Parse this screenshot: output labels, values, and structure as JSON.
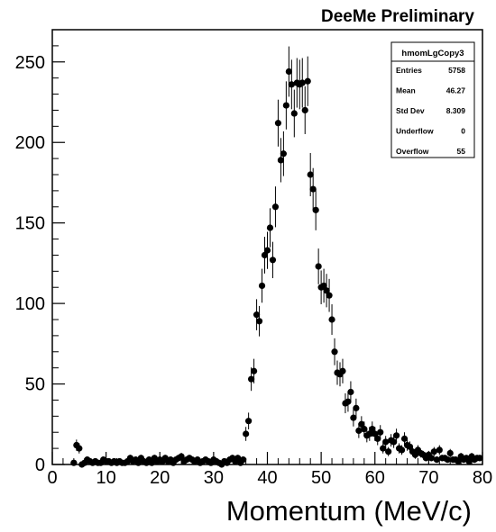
{
  "title": "DeeMe Preliminary",
  "chart_data": {
    "type": "scatter",
    "xlabel": "Momentum (MeV/c)",
    "ylabel": "",
    "xlim": [
      0,
      80
    ],
    "ylim": [
      0,
      270
    ],
    "x_ticks": [
      0,
      10,
      20,
      30,
      40,
      50,
      60,
      70,
      80
    ],
    "y_ticks": [
      0,
      50,
      100,
      150,
      200,
      250
    ],
    "error_bars": true,
    "series": [
      {
        "x": [
          4.0,
          4.5,
          5.0,
          5.5,
          6.0,
          6.5,
          7.0,
          7.5,
          8.0,
          8.5,
          9.0,
          9.5,
          10.0,
          10.5,
          11.0,
          11.5,
          12.0,
          12.5,
          13.0,
          13.5,
          14.0,
          14.5,
          15.0,
          15.5,
          16.0,
          16.5,
          17.0,
          17.5,
          18.0,
          18.5,
          19.0,
          19.5,
          20.0,
          20.5,
          21.0,
          21.5,
          22.0,
          22.5,
          23.0,
          23.5,
          24.0,
          24.5,
          25.0,
          25.5,
          26.0,
          26.5,
          27.0,
          27.5,
          28.0,
          28.5,
          29.0,
          29.5,
          30.0,
          30.5,
          31.0,
          31.5,
          32.0,
          32.5,
          33.0,
          33.5,
          34.0,
          34.5,
          35.0,
          35.5,
          36.0,
          36.5,
          37.0,
          37.5,
          38.0,
          38.5,
          39.0,
          39.5,
          40.0,
          40.5,
          41.0,
          41.5,
          42.0,
          42.5,
          43.0,
          43.5,
          44.0,
          44.5,
          45.0,
          45.5,
          46.0,
          46.5,
          47.0,
          47.5,
          48.0,
          48.5,
          49.0,
          49.5,
          50.0,
          50.5,
          51.0,
          51.5,
          52.0,
          52.5,
          53.0,
          53.5,
          54.0,
          54.5,
          55.0,
          55.5,
          56.0,
          56.5,
          57.0,
          57.5,
          58.0,
          58.5,
          59.0,
          59.5,
          60.0,
          60.5,
          61.0,
          61.5,
          62.0,
          62.5,
          63.0,
          63.5,
          64.0,
          64.5,
          65.0,
          65.5,
          66.0,
          66.5,
          67.0,
          67.5,
          68.0,
          68.5,
          69.0,
          69.5,
          70.0,
          70.5,
          71.0,
          71.5,
          72.0,
          72.5,
          73.0,
          73.5,
          74.0,
          74.5,
          75.0,
          75.5,
          76.0,
          76.5,
          77.0,
          77.5,
          78.0,
          78.5,
          79.0,
          79.5
        ],
        "y": [
          1,
          12,
          10,
          0,
          1,
          3,
          2,
          1,
          2,
          1,
          1,
          3,
          2,
          2,
          1,
          2,
          1,
          2,
          1,
          1,
          2,
          4,
          2,
          3,
          1,
          4,
          2,
          1,
          3,
          1,
          4,
          2,
          3,
          2,
          4,
          2,
          3,
          1,
          3,
          4,
          5,
          2,
          3,
          4,
          3,
          2,
          3,
          1,
          2,
          3,
          2,
          1,
          3,
          2,
          1,
          0,
          2,
          1,
          3,
          4,
          2,
          4,
          1,
          3,
          19,
          27,
          53,
          58,
          93,
          89,
          111,
          130,
          133,
          147,
          127,
          160,
          212,
          189,
          193,
          223,
          244,
          236,
          218,
          237,
          236,
          237,
          220,
          238,
          180,
          171,
          158,
          123,
          110,
          111,
          108,
          105,
          90,
          70,
          57,
          56,
          58,
          38,
          39,
          45,
          29,
          35,
          21,
          25,
          22,
          18,
          19,
          22,
          19,
          16,
          20,
          10,
          14,
          8,
          15,
          14,
          18,
          10,
          9,
          16,
          12,
          11,
          8,
          6,
          9,
          7,
          6,
          4,
          6,
          4,
          8,
          3,
          9,
          4,
          4,
          3,
          7,
          3,
          3,
          2,
          5,
          3,
          4,
          2,
          5,
          3,
          4,
          4
        ],
        "yerr": "sqrt"
      }
    ],
    "legend": {
      "position": "top-right",
      "title": "hmomLgCopy3",
      "rows": [
        {
          "label": "Entries",
          "value": "5758"
        },
        {
          "label": "Mean",
          "value": "46.27"
        },
        {
          "label": "Std Dev",
          "value": "8.309"
        },
        {
          "label": "Underflow",
          "value": "0"
        },
        {
          "label": "Overflow",
          "value": "55"
        }
      ]
    },
    "grid": false
  }
}
